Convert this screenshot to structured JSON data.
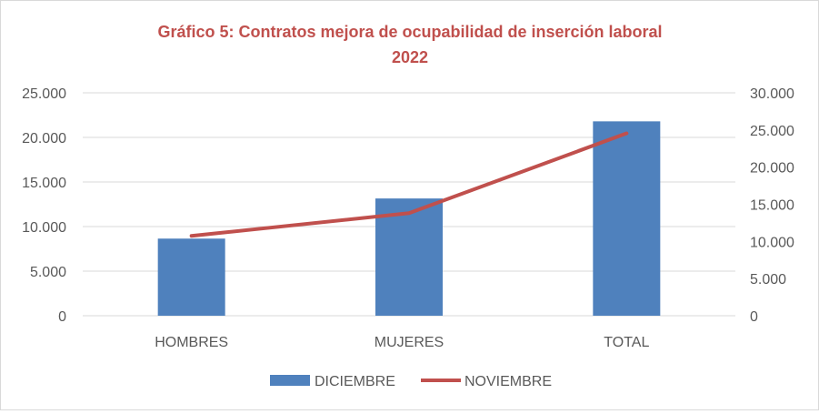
{
  "chart_data": {
    "type": "bar+line",
    "title_line1": "Gráfico 5: Contratos mejora de ocupabilidad de inserción laboral",
    "title_line2": "2022",
    "categories": [
      "HOMBRES",
      "MUJERES",
      "TOTAL"
    ],
    "series": [
      {
        "name": "DICIEMBRE",
        "type": "bar",
        "axis": "left",
        "color": "#4F81BD",
        "values": [
          8650,
          13150,
          21800
        ]
      },
      {
        "name": "NOVIEMBRE",
        "type": "line",
        "axis": "right",
        "color": "#C0504D",
        "values": [
          10750,
          13800,
          24550
        ]
      }
    ],
    "y_left": {
      "min": 0,
      "max": 25000,
      "ticks": [
        "0",
        "5.000",
        "10.000",
        "15.000",
        "20.000",
        "25.000"
      ]
    },
    "y_right": {
      "min": 0,
      "max": 30000,
      "ticks": [
        "0",
        "5.000",
        "10.000",
        "15.000",
        "20.000",
        "25.000",
        "30.000"
      ]
    },
    "grid": true,
    "legend_position": "bottom",
    "title_color": "#C0504D"
  }
}
